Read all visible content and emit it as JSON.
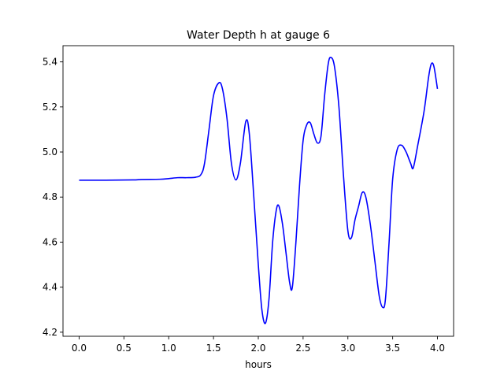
{
  "chart_data": {
    "type": "line",
    "title": "Water Depth h at gauge 6",
    "xlabel": "hours",
    "ylabel": "",
    "xlim": [
      -0.18,
      4.18
    ],
    "ylim": [
      4.182,
      5.472
    ],
    "x_ticks": [
      0.0,
      0.5,
      1.0,
      1.5,
      2.0,
      2.5,
      3.0,
      3.5,
      4.0
    ],
    "x_tick_labels": [
      "0.0",
      "0.5",
      "1.0",
      "1.5",
      "2.0",
      "2.5",
      "3.0",
      "3.5",
      "4.0"
    ],
    "y_ticks": [
      4.2,
      4.4,
      4.6,
      4.8,
      5.0,
      5.2,
      5.4
    ],
    "y_tick_labels": [
      "4.2",
      "4.4",
      "4.6",
      "4.8",
      "5.0",
      "5.2",
      "5.4"
    ],
    "grid": false,
    "legend": "none",
    "series": [
      {
        "color": "#0000ff",
        "x": [
          0.0,
          0.3,
          0.6,
          0.7,
          0.9,
          1.0,
          1.1,
          1.2,
          1.3,
          1.36,
          1.4,
          1.45,
          1.5,
          1.56,
          1.6,
          1.65,
          1.7,
          1.75,
          1.8,
          1.86,
          1.9,
          1.95,
          2.0,
          2.04,
          2.08,
          2.12,
          2.16,
          2.2,
          2.23,
          2.27,
          2.31,
          2.35,
          2.38,
          2.42,
          2.46,
          2.5,
          2.54,
          2.58,
          2.62,
          2.66,
          2.7,
          2.74,
          2.78,
          2.81,
          2.85,
          2.9,
          2.95,
          3.0,
          3.04,
          3.08,
          3.12,
          3.16,
          3.2,
          3.25,
          3.3,
          3.35,
          3.39,
          3.42,
          3.46,
          3.5,
          3.55,
          3.6,
          3.65,
          3.7,
          3.73,
          3.78,
          3.85,
          3.9,
          3.93,
          3.96,
          4.0
        ],
        "y": [
          4.875,
          4.875,
          4.876,
          4.878,
          4.879,
          4.882,
          4.886,
          4.886,
          4.888,
          4.9,
          4.95,
          5.1,
          5.25,
          5.307,
          5.28,
          5.15,
          4.95,
          4.876,
          4.95,
          5.135,
          5.08,
          4.8,
          4.5,
          4.3,
          4.24,
          4.35,
          4.6,
          4.74,
          4.76,
          4.68,
          4.55,
          4.42,
          4.4,
          4.6,
          4.85,
          5.05,
          5.12,
          5.13,
          5.08,
          5.04,
          5.07,
          5.25,
          5.39,
          5.42,
          5.38,
          5.2,
          4.9,
          4.65,
          4.62,
          4.7,
          4.76,
          4.82,
          4.8,
          4.68,
          4.52,
          4.36,
          4.31,
          4.35,
          4.6,
          4.88,
          5.01,
          5.03,
          5.0,
          4.95,
          4.93,
          5.03,
          5.18,
          5.33,
          5.39,
          5.38,
          5.28
        ]
      }
    ]
  }
}
